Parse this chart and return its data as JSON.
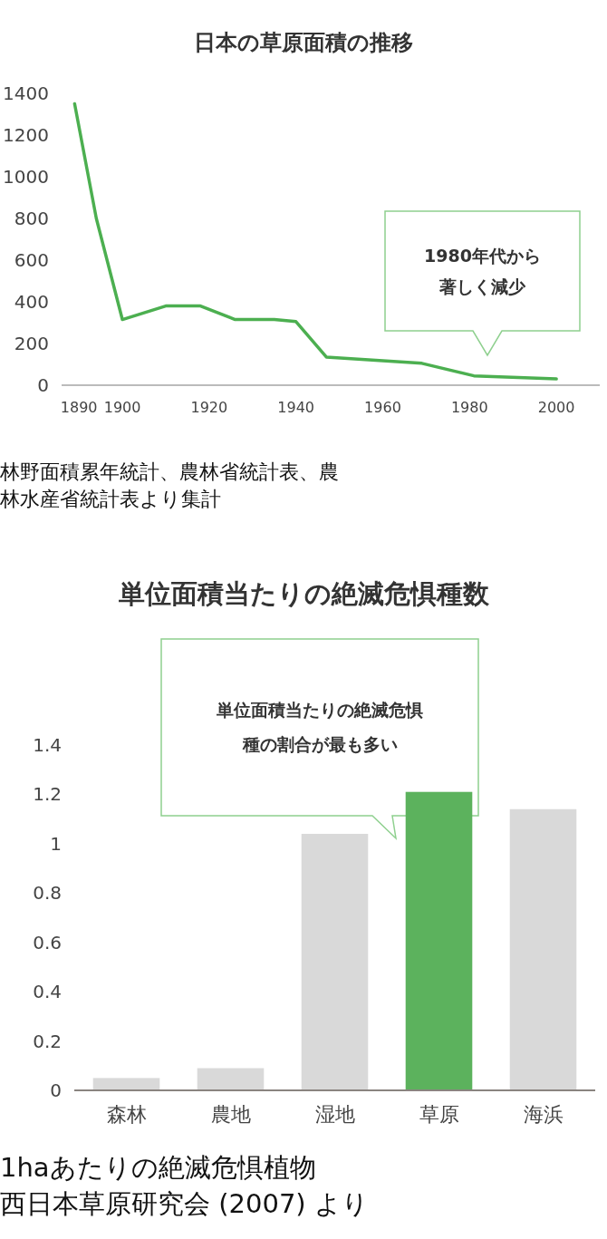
{
  "chart_data": [
    {
      "type": "line",
      "title": "日本の草原面積の推移",
      "x": [
        1889,
        1894,
        1900,
        1910,
        1918,
        1926,
        1935,
        1940,
        1947,
        1969,
        1981,
        2000
      ],
      "series": [
        {
          "color": "#4caf50",
          "values": [
            1350,
            800,
            315,
            380,
            380,
            315,
            315,
            305,
            135,
            105,
            45,
            30
          ]
        }
      ],
      "xlim": [
        1886,
        2010
      ],
      "xticks": [
        1890,
        1900,
        1920,
        1940,
        1960,
        1980,
        2000
      ],
      "ylim": [
        0,
        1400
      ],
      "yticks": [
        0,
        200,
        400,
        600,
        800,
        1000,
        1200,
        1400
      ],
      "grid": false,
      "marker": "none",
      "line_style": "solid",
      "annotations": [
        "1980年代から著しく減少",
        "林野面積累年統計、農林省統計表、農林水産省統計表より集計"
      ]
    },
    {
      "type": "bar",
      "title": "単位面積当たりの絶滅危惧種数",
      "categories": [
        "森林",
        "農地",
        "湿地",
        "草原",
        "海浜"
      ],
      "values": [
        0.05,
        0.09,
        1.04,
        1.21,
        1.14
      ],
      "colors": [
        "#d9d9d9",
        "#d9d9d9",
        "#d9d9d9",
        "#5cb25d",
        "#d9d9d9"
      ],
      "ylim": [
        0,
        1.4
      ],
      "yticks": [
        0,
        0.2,
        0.4,
        0.6,
        0.8,
        1,
        1.2,
        1.4
      ],
      "grid": false,
      "annotations": [
        "単位面積当たりの絶滅危惧種の割合が最も多い",
        "1haあたりの絶滅危惧植物",
        "西日本草原研究会 (2007) より"
      ]
    }
  ]
}
